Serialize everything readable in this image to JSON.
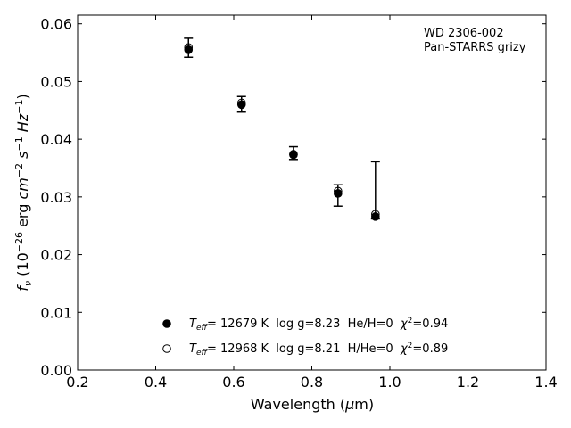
{
  "chart_data": {
    "type": "scatter",
    "xlabel": "Wavelength (μm)",
    "ylabel": "f_ν (10^−26 erg cm^−2 s^−1 Hz^−1)",
    "xlim": [
      0.2,
      1.4
    ],
    "ylim": [
      0.0,
      0.0615
    ],
    "xticks": [
      "0.2",
      "0.4",
      "0.6",
      "0.8",
      "1.0",
      "1.2",
      "1.4"
    ],
    "yticks": [
      "0.00",
      "0.01",
      "0.02",
      "0.03",
      "0.04",
      "0.05",
      "0.06"
    ],
    "grid": false,
    "annotation": [
      "WD 2306-002",
      "Pan-STARRS grizy"
    ],
    "observed": [
      {
        "x": 0.484,
        "y": 0.0558,
        "yerr_low": 0.0542,
        "yerr_high": 0.0575
      },
      {
        "x": 0.62,
        "y": 0.0461,
        "yerr_low": 0.0447,
        "yerr_high": 0.0474
      },
      {
        "x": 0.753,
        "y": 0.0375,
        "yerr_low": 0.0365,
        "yerr_high": 0.0387
      },
      {
        "x": 0.867,
        "y": 0.0309,
        "yerr_low": 0.0284,
        "yerr_high": 0.0321
      },
      {
        "x": 0.963,
        "y": 0.0267,
        "yerr_low": 0.0262,
        "yerr_high": 0.0361
      }
    ],
    "series": [
      {
        "legend_parts": [
          "T",
          "eff",
          "= 12679 K  log g=8.23  He/H=0  ",
          "χ",
          "2",
          "=0.94"
        ],
        "marker": "filled",
        "x": [
          0.484,
          0.62,
          0.753,
          0.867,
          0.963
        ],
        "y": [
          0.0555,
          0.046,
          0.0373,
          0.0306,
          0.0266
        ]
      },
      {
        "legend_parts": [
          "T",
          "eff",
          "= 12968 K  log g=8.21  H/He=0  ",
          "χ",
          "2",
          "=0.89"
        ],
        "marker": "open",
        "x": [
          0.484,
          0.62,
          0.753,
          0.867,
          0.963
        ],
        "y": [
          0.0559,
          0.0463,
          0.0374,
          0.031,
          0.027
        ]
      }
    ]
  }
}
